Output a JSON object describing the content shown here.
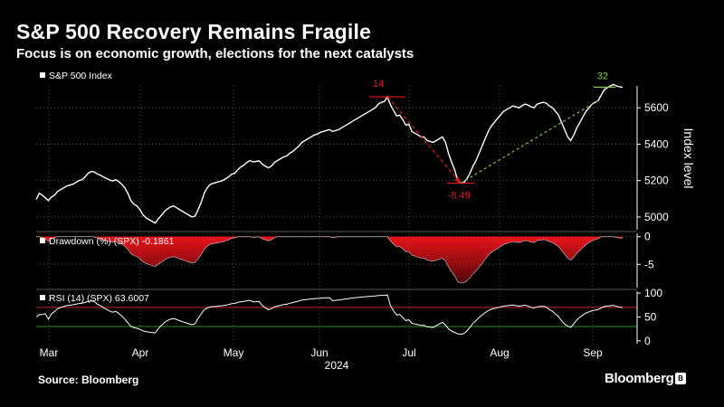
{
  "header": {
    "title": "S&P 500 Recovery Remains Fragile",
    "subtitle": "Focus is on economic growth, elections for the next catalysts"
  },
  "footer": {
    "source": "Source: Bloomberg",
    "brand": "Bloomberg"
  },
  "colors": {
    "background": "#000000",
    "line": "#ffffff",
    "drawdown": "#e8141b",
    "annotation_red": "#e8141b",
    "annotation_green": "#7ec850",
    "rsi_upper": "#c0272d",
    "rsi_lower": "#2e8b2e"
  },
  "chart_data": [
    {
      "panel": "price",
      "type": "line",
      "legend": "S&P 500 Index",
      "ylabel": "Index level",
      "yticks": [
        5000,
        5200,
        5400,
        5600
      ],
      "ylim": [
        4930,
        5720
      ],
      "xticks": [
        "Mar",
        "Apr",
        "May",
        "Jun",
        "Jul",
        "Aug",
        "Sep"
      ],
      "xlabel_year": "2024",
      "values": [
        5097,
        5130,
        5120,
        5105,
        5090,
        5110,
        5120,
        5140,
        5150,
        5160,
        5170,
        5175,
        5180,
        5190,
        5200,
        5205,
        5220,
        5240,
        5250,
        5248,
        5236,
        5230,
        5220,
        5212,
        5204,
        5198,
        5205,
        5195,
        5180,
        5160,
        5130,
        5090,
        5070,
        5060,
        5040,
        5011,
        4995,
        4985,
        4975,
        4967,
        4990,
        5010,
        5030,
        5045,
        5055,
        5060,
        5050,
        5040,
        5030,
        5020,
        5010,
        5000,
        5005,
        5040,
        5080,
        5130,
        5160,
        5180,
        5185,
        5190,
        5195,
        5200,
        5210,
        5220,
        5235,
        5240,
        5260,
        5275,
        5285,
        5300,
        5310,
        5303,
        5305,
        5308,
        5290,
        5280,
        5270,
        5280,
        5300,
        5310,
        5320,
        5330,
        5335,
        5350,
        5360,
        5375,
        5390,
        5410,
        5420,
        5430,
        5440,
        5450,
        5455,
        5465,
        5470,
        5475,
        5480,
        5470,
        5475,
        5480,
        5490,
        5500,
        5510,
        5520,
        5530,
        5540,
        5550,
        5560,
        5570,
        5580,
        5590,
        5600,
        5620,
        5630,
        5635,
        5660,
        5615,
        5585,
        5555,
        5560,
        5535,
        5505,
        5510,
        5470,
        5460,
        5450,
        5440,
        5440,
        5420,
        5415,
        5410,
        5420,
        5430,
        5440,
        5410,
        5350,
        5300,
        5260,
        5200,
        5186,
        5190,
        5210,
        5240,
        5280,
        5310,
        5350,
        5390,
        5430,
        5470,
        5500,
        5520,
        5540,
        5560,
        5580,
        5590,
        5600,
        5610,
        5605,
        5600,
        5610,
        5620,
        5615,
        5605,
        5600,
        5620,
        5625,
        5630,
        5625,
        5610,
        5600,
        5580,
        5560,
        5520,
        5480,
        5440,
        5420,
        5450,
        5490,
        5520,
        5550,
        5580,
        5600,
        5620,
        5630,
        5640,
        5670,
        5700,
        5710,
        5720,
        5728,
        5720,
        5715,
        5712
      ],
      "annotations": [
        {
          "label": "14",
          "color": "red",
          "point": "peak"
        },
        {
          "label": "-8.49",
          "color": "red",
          "point": "trough"
        },
        {
          "label": "32",
          "color": "green",
          "point": "recovery"
        }
      ]
    },
    {
      "panel": "drawdown",
      "type": "area",
      "legend": "Drawdown (%) (SPX) -0.1861",
      "yticks": [
        0,
        -5
      ],
      "ylim": [
        -9.2,
        0.6
      ],
      "last_value": -0.1861
    },
    {
      "panel": "rsi",
      "type": "line",
      "legend": "RSI (14) (SPX) 63.6007",
      "yticks": [
        0,
        50,
        100
      ],
      "ylim": [
        -6,
        104
      ],
      "reference_lines": [
        70,
        30
      ],
      "last_value": 63.6007
    }
  ]
}
